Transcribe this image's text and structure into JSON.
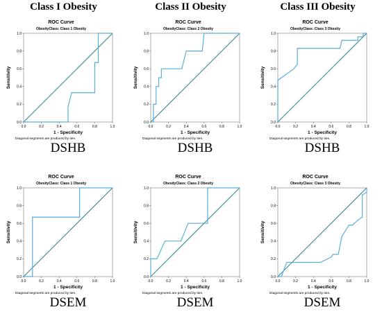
{
  "columns": [
    "Class I Obesity",
    "Class II Obesity",
    "Class III Obesity"
  ],
  "common": {
    "roc_title": "ROC Curve",
    "xlabel": "1 - Specificity",
    "ylabel": "Sensitivity",
    "footnote": "Diagonal segments are produced by ties.",
    "x_ticks": [
      "0.0",
      "0.2",
      "0.4",
      "0.6",
      "0.8",
      "1.0"
    ],
    "y_ticks": [
      "0.0",
      "0.2",
      "0.4",
      "0.6",
      "0.8",
      "1.0"
    ],
    "curve_color": "#5aaedc",
    "reference_color": "#2f7e8b"
  },
  "chart_data": [
    {
      "type": "line",
      "row": 0,
      "col": 0,
      "method": "DSHB",
      "subtitle": "ObesityClass: Class 1 Obesity",
      "xlim": [
        0,
        1
      ],
      "ylim": [
        0,
        1
      ],
      "series": [
        {
          "x": [
            0,
            0.5,
            0.5,
            0.54,
            0.54,
            0.8,
            0.8,
            0.84,
            0.84,
            1
          ],
          "y": [
            0,
            0,
            0.17,
            0.33,
            0.33,
            0.33,
            0.67,
            0.67,
            1,
            1
          ]
        }
      ]
    },
    {
      "type": "line",
      "row": 0,
      "col": 1,
      "method": "DSHB",
      "subtitle": "ObesityClass: Class 2 Obesity",
      "xlim": [
        0,
        1
      ],
      "ylim": [
        0,
        1
      ],
      "series": [
        {
          "x": [
            0,
            0.03,
            0.03,
            0.06,
            0.06,
            0.09,
            0.09,
            0.12,
            0.12,
            0.35,
            0.4,
            0.58,
            0.6,
            0.68,
            0.68,
            1
          ],
          "y": [
            0,
            0,
            0.2,
            0.2,
            0.4,
            0.4,
            0.5,
            0.5,
            0.6,
            0.6,
            0.8,
            0.8,
            1,
            1,
            1,
            1
          ]
        }
      ]
    },
    {
      "type": "line",
      "row": 0,
      "col": 2,
      "method": "DSHB",
      "subtitle": "ObesityClass: Class 3 Obesity",
      "xlim": [
        0,
        1
      ],
      "ylim": [
        0,
        1
      ],
      "series": [
        {
          "x": [
            0,
            0,
            0.18,
            0.22,
            0.22,
            0.7,
            0.72,
            0.9,
            0.9,
            0.96,
            0.96,
            1
          ],
          "y": [
            0,
            0.47,
            0.6,
            0.65,
            0.83,
            0.83,
            0.92,
            0.92,
            0.96,
            0.96,
            1,
            1
          ]
        }
      ]
    },
    {
      "type": "line",
      "row": 1,
      "col": 0,
      "method": "DSEM",
      "subtitle": "ObesityClass: Class 1 Obesity",
      "xlim": [
        0,
        1
      ],
      "ylim": [
        0,
        1
      ],
      "series": [
        {
          "x": [
            0,
            0.1,
            0.1,
            0.33,
            0.63,
            0.63,
            0.67,
            1
          ],
          "y": [
            0,
            0,
            0.67,
            0.67,
            0.67,
            1,
            1,
            1
          ]
        }
      ]
    },
    {
      "type": "line",
      "row": 1,
      "col": 1,
      "method": "DSEM",
      "subtitle": "ObesityClass: Class 2 Obesity",
      "xlim": [
        0,
        1
      ],
      "ylim": [
        0,
        1
      ],
      "series": [
        {
          "x": [
            0,
            0,
            0.07,
            0.16,
            0.34,
            0.42,
            0.64,
            0.64,
            1
          ],
          "y": [
            0,
            0.2,
            0.2,
            0.4,
            0.4,
            0.6,
            0.6,
            1,
            1
          ]
        }
      ]
    },
    {
      "type": "line",
      "row": 1,
      "col": 2,
      "method": "DSEM",
      "subtitle": "ObesityClass: Class 3 Obesity",
      "xlim": [
        0,
        1
      ],
      "ylim": [
        0,
        1
      ],
      "series": [
        {
          "x": [
            0,
            0.04,
            0.1,
            0.48,
            0.6,
            0.62,
            0.68,
            0.72,
            0.75,
            0.8,
            0.84,
            0.86,
            0.92,
            0.95,
            0.95,
            1,
            1
          ],
          "y": [
            0,
            0,
            0.16,
            0.16,
            0.22,
            0.25,
            0.25,
            0.45,
            0.5,
            0.58,
            0.58,
            0.6,
            0.65,
            0.67,
            0.92,
            0.95,
            1
          ]
        }
      ]
    }
  ]
}
